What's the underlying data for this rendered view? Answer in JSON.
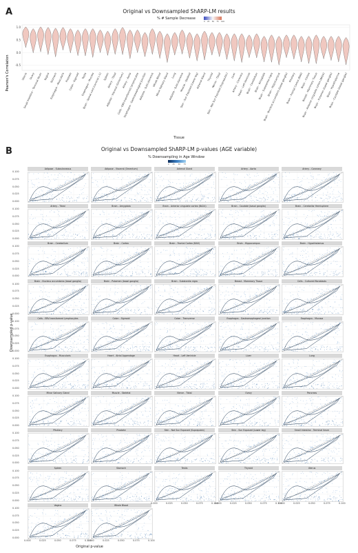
{
  "panel_a": {
    "letter": "A",
    "title": "Original vs Downsampled ShARP-LM results",
    "legend_title": "% # Sample Decrease",
    "legend_ticks": [
      "0",
      "25",
      "50",
      "75",
      "100"
    ],
    "ylabel": "Pearson's Correlation",
    "xlabel": "Tissue",
    "yticks": [
      "1.0",
      "0.5",
      "0.0",
      "-0.5"
    ],
    "tissues": [
      "Uterus",
      "Ovary",
      "Small Intestine - Terminal Ileum",
      "Vagina",
      "Stomach",
      "Esophagus - Muscularis",
      "Prostate",
      "Colon - Sigmoid",
      "Testis",
      "Esophagus - Mucosa",
      "Brain - Spinal cord (cervical c-1)",
      "Spleen",
      "Artery - Tibial",
      "Adipose - Visceral (Omentum)",
      "Artery - Aorta",
      "Cells - EBV-transformed lymphocytes",
      "Esophagus - Gastroesophageal Junction",
      "Adipose - Subcutaneous",
      "Whole Blood",
      "Minor Salivary Gland",
      "Lung",
      "Adipose - Subcutaneous",
      "Muscle - Skeletal",
      "Skin - Sun Exposed (Lower leg)",
      "Adrenal Gland",
      "Thyroid",
      "Nerve - Tibial",
      "Skin - Not Sun Exposed (Suprapubic)",
      "Liver",
      "Artery - Coronary",
      "Heart - Left Ventricle",
      "Brain - Cerebellum",
      "Brain - Amygdala",
      "Brain - Substantia nigra",
      "Brain - Hippocampus",
      "Brain - Nucleus accumbens (basal ganglia)",
      "Pituitary",
      "Brain - Frontal Cortex (BA9)",
      "Brain - Cortex",
      "Breast - Mammary Tissue",
      "Brain - Anterior cingulate cortex (BA24)",
      "Brain - Putamen (basal ganglia)",
      "Brain - Hypothalamus",
      "Brain - Caudate (basal ganglia)"
    ],
    "chart_data": {
      "type": "violin",
      "title": "Original vs Downsampled ShARP-LM results",
      "xlabel": "Tissue",
      "ylabel": "Pearson's Correlation",
      "ylim": [
        -0.7,
        1.1
      ],
      "medians": [
        0.75,
        0.6,
        0.7,
        0.65,
        0.62,
        0.65,
        0.6,
        0.55,
        0.6,
        0.6,
        0.55,
        0.5,
        0.6,
        0.65,
        0.55,
        0.55,
        0.45,
        0.6,
        0.5,
        0.4,
        0.45,
        0.55,
        0.45,
        0.4,
        0.5,
        0.45,
        0.45,
        0.4,
        0.4,
        0.4,
        0.35,
        0.4,
        0.3,
        0.35,
        0.3,
        0.35,
        0.35,
        0.3,
        0.3,
        0.35,
        0.3,
        0.3,
        0.3,
        0.25
      ]
    }
  },
  "panel_b": {
    "letter": "B",
    "title": "Original vs Downsampled ShARP-LM p-values (AGE variable)",
    "legend_title": "% Downsampling in Age Window",
    "legend_ticks": [
      "0",
      "25",
      "50",
      "75"
    ],
    "ylabel": "Downsampled p-value",
    "xlabel": "Original p-value",
    "yticks": [
      "0.100",
      "0.075",
      "0.050",
      "0.025",
      "0.000"
    ],
    "xticks": [
      "0.000",
      "0.025",
      "0.050",
      "0.075",
      "0.100"
    ],
    "facets": [
      "Adipose - Subcutaneous",
      "Adipose - Visceral (Omentum)",
      "Adrenal Gland",
      "Artery - Aorta",
      "Artery - Coronary",
      "Artery - Tibial",
      "Brain - Amygdala",
      "Brain - Anterior cingulate cortex (BA24)",
      "Brain - Caudate (basal ganglia)",
      "Brain - Cerebellar Hemisphere",
      "Brain - Cerebellum",
      "Brain - Cortex",
      "Brain - Frontal Cortex (BA9)",
      "Brain - Hippocampus",
      "Brain - Hypothalamus",
      "Brain - Nucleus accumbens (basal ganglia)",
      "Brain - Putamen (basal ganglia)",
      "Brain - Substantia nigra",
      "Breast - Mammary Tissue",
      "Cells - Cultured fibroblasts",
      "Cells - EBV-transformed lymphocytes",
      "Colon - Sigmoid",
      "Colon - Transverse",
      "Esophagus - Gastroesophageal Junction",
      "Esophagus - Mucosa",
      "Esophagus - Muscularis",
      "Heart - Atrial Appendage",
      "Heart - Left Ventricle",
      "Liver",
      "Lung",
      "Minor Salivary Gland",
      "Muscle - Skeletal",
      "Nerve - Tibial",
      "Ovary",
      "Pancreas",
      "Pituitary",
      "Prostate",
      "Skin - Not Sun Exposed (Suprapubic)",
      "Skin - Sun Exposed (Lower leg)",
      "Small Intestine - Terminal Ileum",
      "Spleen",
      "Stomach",
      "Testis",
      "Thyroid",
      "Uterus",
      "Vagina",
      "Whole Blood"
    ]
  },
  "colors": {
    "violin_fill": "#f0c8c0",
    "violin_stroke": "#555555",
    "point_blue": "#3b7fc4",
    "contour": "#1c3550",
    "strip_bg": "#d9d9d9"
  }
}
